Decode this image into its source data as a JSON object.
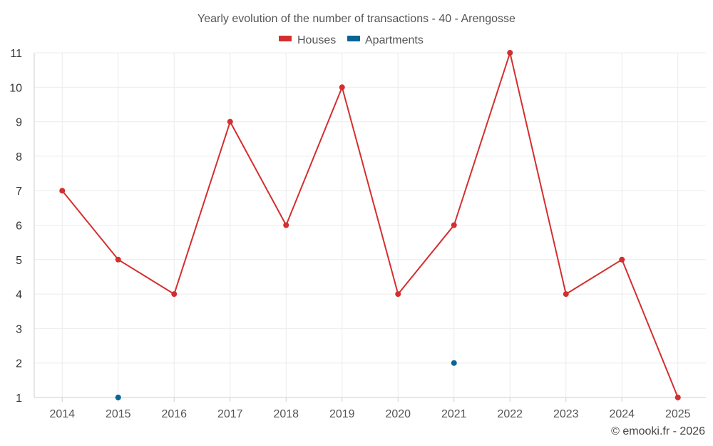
{
  "chart_data": {
    "type": "line",
    "title": "Yearly evolution of the number of transactions - 40 - Arengosse",
    "categories": [
      "2014",
      "2015",
      "2016",
      "2017",
      "2018",
      "2019",
      "2020",
      "2021",
      "2022",
      "2023",
      "2024",
      "2025"
    ],
    "series": [
      {
        "name": "Houses",
        "color": "#d32f2f",
        "line": true,
        "values": [
          7,
          5,
          4,
          9,
          6,
          10,
          4,
          6,
          11,
          4,
          5,
          1
        ]
      },
      {
        "name": "Apartments",
        "color": "#0a6496",
        "line": false,
        "values": [
          null,
          1,
          null,
          null,
          null,
          null,
          null,
          2,
          null,
          null,
          null,
          null
        ]
      }
    ],
    "yticks": [
      1,
      2,
      3,
      4,
      5,
      6,
      7,
      8,
      9,
      10,
      11
    ],
    "ylim": [
      1,
      11
    ],
    "xlabel": "",
    "ylabel": "",
    "legend": "top-center",
    "grid": true
  },
  "credit": "© emooki.fr - 2026"
}
